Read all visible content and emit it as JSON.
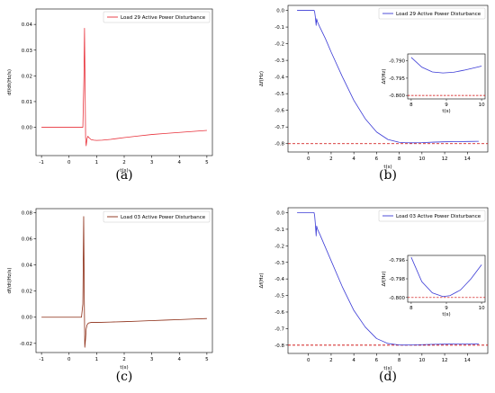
{
  "chart_data": [
    {
      "type": "line",
      "caption": "(a)",
      "xlabel": "t(s)",
      "ylabel": "df/dt(Hz/s)",
      "xlim": [
        -1.2,
        5.2
      ],
      "ylim": [
        -0.011,
        0.046
      ],
      "xticks": [
        -1,
        0,
        1,
        2,
        3,
        4,
        5
      ],
      "yticks": [
        0.0,
        0.01,
        0.02,
        0.03,
        0.04
      ],
      "ytick_format": 2,
      "legend": "top-right",
      "series": [
        {
          "name": "Load 29 Active Power Disturbance",
          "color": "#e8303a",
          "x": [
            -1,
            0.5,
            0.54,
            0.56,
            0.58,
            0.6,
            0.62,
            0.65,
            0.68,
            0.72,
            0.8,
            0.9,
            1.0,
            1.2,
            1.5,
            2.0,
            2.5,
            3.0,
            3.5,
            4.0,
            4.5,
            5.0
          ],
          "y": [
            0.0,
            0.0,
            0.02,
            0.0385,
            0.018,
            -0.004,
            -0.0072,
            -0.0045,
            -0.0035,
            -0.004,
            -0.0048,
            -0.005,
            -0.0051,
            -0.005,
            -0.0047,
            -0.004,
            -0.0034,
            -0.0028,
            -0.0024,
            -0.002,
            -0.0016,
            -0.0012
          ]
        }
      ]
    },
    {
      "type": "line",
      "caption": "(b)",
      "xlabel": "t(s)",
      "ylabel": "Δf(Hz)",
      "xlim": [
        -1.8,
        15.8
      ],
      "ylim": [
        -0.85,
        0.03
      ],
      "xticks": [
        0,
        2,
        4,
        6,
        8,
        10,
        12,
        14
      ],
      "yticks": [
        0.0,
        -0.1,
        -0.2,
        -0.3,
        -0.4,
        -0.5,
        -0.6,
        -0.7,
        -0.8
      ],
      "ytick_format": 1,
      "legend": "top-right",
      "hline": {
        "y": -0.8,
        "color": "#cc0000",
        "style": "dashed"
      },
      "series": [
        {
          "name": "Load 29 Active Power Disturbance",
          "color": "#3b3bd6",
          "x": [
            -1,
            0.5,
            0.55,
            0.6,
            0.68,
            0.72,
            0.8,
            1.0,
            1.5,
            2.0,
            3.0,
            4.0,
            5.0,
            6.0,
            7.0,
            8.0,
            8.5,
            9.0,
            10.0,
            11.0,
            12.0,
            13.0,
            14.0,
            15.0
          ],
          "y": [
            0.0,
            0.0,
            -0.01,
            -0.035,
            -0.09,
            -0.05,
            -0.07,
            -0.1,
            -0.17,
            -0.25,
            -0.4,
            -0.54,
            -0.65,
            -0.73,
            -0.775,
            -0.792,
            -0.794,
            -0.795,
            -0.794,
            -0.791,
            -0.789,
            -0.788,
            -0.787,
            -0.786
          ]
        }
      ],
      "inset": {
        "xlabel": "t(s)",
        "ylabel": "Δf(Hz)",
        "xlim": [
          7.9,
          10.1
        ],
        "ylim": [
          -0.801,
          -0.788
        ],
        "xticks": [
          8,
          9,
          10
        ],
        "yticks": [
          -0.79,
          -0.795,
          -0.8
        ],
        "ytick_format": 3,
        "hline": -0.8,
        "x": [
          8.0,
          8.3,
          8.6,
          8.9,
          9.2,
          9.5,
          9.8,
          10.0
        ],
        "y": [
          -0.789,
          -0.7918,
          -0.7932,
          -0.7935,
          -0.7933,
          -0.7927,
          -0.792,
          -0.7915
        ]
      }
    },
    {
      "type": "line",
      "caption": "(c)",
      "xlabel": "t(s)",
      "ylabel": "df/dt(Hz/s)",
      "xlim": [
        -1.2,
        5.2
      ],
      "ylim": [
        -0.027,
        0.083
      ],
      "xticks": [
        -1,
        0,
        1,
        2,
        3,
        4,
        5
      ],
      "yticks": [
        -0.02,
        0.0,
        0.02,
        0.04,
        0.06,
        0.08
      ],
      "ytick_format": 2,
      "legend": "top-right",
      "series": [
        {
          "name": "Load 03 Active Power Disturbance",
          "color": "#8b2a12",
          "x": [
            -1,
            0.45,
            0.5,
            0.53,
            0.55,
            0.57,
            0.6,
            0.62,
            0.65,
            0.7,
            0.8,
            1.0,
            1.5,
            2.0,
            2.5,
            3.0,
            3.5,
            4.0,
            4.5,
            5.0
          ],
          "y": [
            0.0,
            0.0,
            0.01,
            0.077,
            0.02,
            -0.023,
            -0.016,
            -0.009,
            -0.006,
            -0.0045,
            -0.004,
            -0.004,
            -0.0037,
            -0.0034,
            -0.003,
            -0.0026,
            -0.0022,
            -0.0018,
            -0.0014,
            -0.001
          ]
        }
      ]
    },
    {
      "type": "line",
      "caption": "(d)",
      "xlabel": "t(s)",
      "ylabel": "Δf(Hz)",
      "xlim": [
        -1.8,
        15.8
      ],
      "ylim": [
        -0.85,
        0.03
      ],
      "xticks": [
        0,
        2,
        4,
        6,
        8,
        10,
        12,
        14
      ],
      "yticks": [
        0.0,
        -0.1,
        -0.2,
        -0.3,
        -0.4,
        -0.5,
        -0.6,
        -0.7,
        -0.8
      ],
      "ytick_format": 1,
      "legend": "top-right",
      "hline": {
        "y": -0.8,
        "color": "#cc0000",
        "style": "dashed"
      },
      "series": [
        {
          "name": "Load 03 Active Power Disturbance",
          "color": "#3b3bd6",
          "x": [
            -1,
            0.5,
            0.55,
            0.6,
            0.68,
            0.72,
            0.8,
            1.0,
            1.5,
            2.0,
            3.0,
            4.0,
            5.0,
            6.0,
            7.0,
            8.0,
            8.5,
            9.0,
            10.0,
            11.0,
            12.0,
            13.0,
            14.0,
            15.0
          ],
          "y": [
            0.0,
            0.0,
            -0.02,
            -0.06,
            -0.14,
            -0.08,
            -0.1,
            -0.13,
            -0.21,
            -0.29,
            -0.45,
            -0.59,
            -0.69,
            -0.76,
            -0.79,
            -0.799,
            -0.7995,
            -0.799,
            -0.797,
            -0.795,
            -0.794,
            -0.793,
            -0.793,
            -0.792
          ]
        }
      ],
      "inset": {
        "xlabel": "t(s)",
        "ylabel": "Δf(Hz)",
        "xlim": [
          7.9,
          10.1
        ],
        "ylim": [
          -0.8005,
          -0.7955
        ],
        "xticks": [
          8,
          9,
          10
        ],
        "yticks": [
          -0.796,
          -0.798,
          -0.8
        ],
        "ytick_format": 3,
        "hline": -0.8,
        "x": [
          8.0,
          8.3,
          8.6,
          8.9,
          9.1,
          9.4,
          9.7,
          10.0
        ],
        "y": [
          -0.7957,
          -0.7983,
          -0.7995,
          -0.7999,
          -0.7998,
          -0.7992,
          -0.798,
          -0.7965
        ]
      }
    }
  ]
}
